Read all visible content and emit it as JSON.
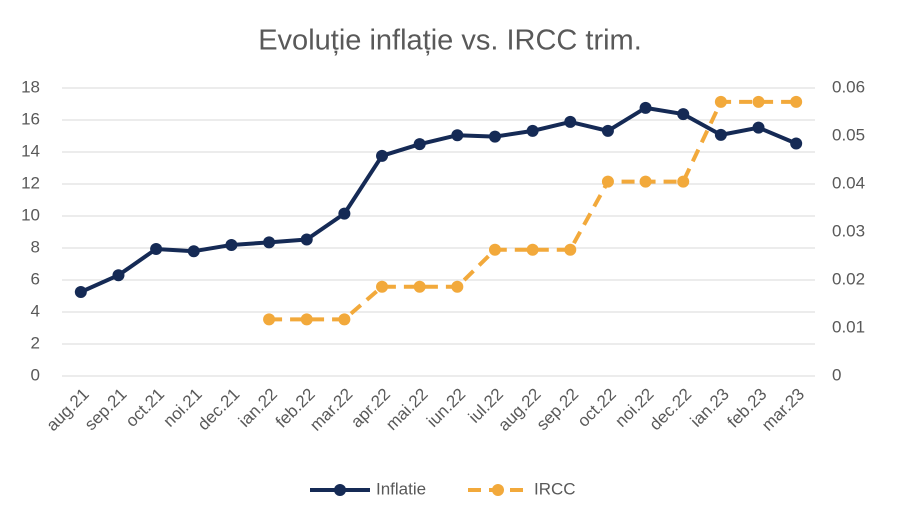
{
  "chart_data": {
    "type": "line",
    "title": "Evoluție inflație vs. IRCC trim.",
    "categories": [
      "aug.21",
      "sep.21",
      "oct.21",
      "noi.21",
      "dec.21",
      "ian.22",
      "feb.22",
      "mar.22",
      "apr.22",
      "mai.22",
      "iun.22",
      "iul.22",
      "aug.22",
      "sep.22",
      "oct.22",
      "noi.22",
      "dec.22",
      "ian.23",
      "feb.23",
      "mar.23"
    ],
    "series": [
      {
        "name": "Inflatie",
        "color": "#152a55",
        "dashed": false,
        "values": [
          5.25,
          6.3,
          7.94,
          7.8,
          8.19,
          8.35,
          8.53,
          10.15,
          13.76,
          14.49,
          15.05,
          14.96,
          15.32,
          15.88,
          15.32,
          16.76,
          16.37,
          15.07,
          15.52,
          14.53
        ]
      },
      {
        "name": "IRCC",
        "color": "#f2a93b",
        "dashed": true,
        "axis": "y2",
        "values": [
          null,
          null,
          null,
          null,
          null,
          0.0118,
          0.0118,
          0.0118,
          0.0186,
          0.0186,
          0.0186,
          0.0263,
          0.0263,
          0.0263,
          0.0405,
          0.0405,
          0.0405,
          0.0571,
          0.0571,
          0.0571
        ]
      }
    ],
    "ylim": [
      0,
      18
    ],
    "yticks": [
      0,
      2,
      4,
      6,
      8,
      10,
      12,
      14,
      16,
      18
    ],
    "y2lim": [
      0,
      0.06
    ],
    "y2ticks": [
      0,
      0.01,
      0.02,
      0.03,
      0.04,
      0.05,
      0.06
    ],
    "grid": true,
    "legend": "bottom"
  }
}
